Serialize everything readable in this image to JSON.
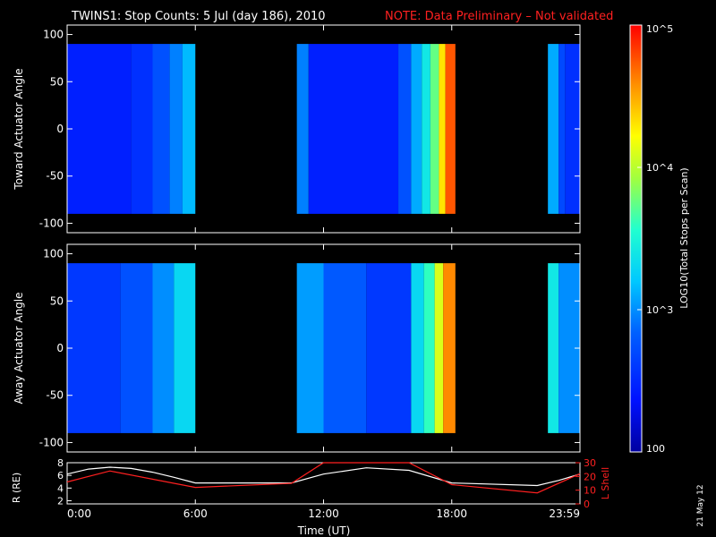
{
  "header": {
    "title": "TWINS1: Stop Counts:  5 Jul (day 186), 2010",
    "note": "NOTE: Data Preliminary – Not validated",
    "note_color": "#ff2020"
  },
  "footer": {
    "date_stamp": "21 May 12"
  },
  "colors": {
    "background": "#000000",
    "axes": "#ffffff",
    "l_shell_line": "#ff2020",
    "r_line": "#ffffff"
  },
  "chart_data": [
    {
      "type": "heatmap",
      "ylabel": "Toward Actuator Angle",
      "ylim": [
        -110,
        110
      ],
      "yticks": [
        -100,
        -50,
        0,
        50,
        100
      ],
      "xlim_hours": [
        0,
        24
      ],
      "data_y_range": [
        -90,
        90
      ],
      "time_blocks": [
        {
          "start": "00:00",
          "end": "06:00"
        },
        {
          "start": "10:45",
          "end": "18:10"
        },
        {
          "start": "22:30",
          "end": "24:00"
        }
      ],
      "levels": [
        {
          "start": 0.0,
          "end": 3.0,
          "log": 2.45
        },
        {
          "start": 3.0,
          "end": 4.0,
          "log": 2.55
        },
        {
          "start": 4.0,
          "end": 4.8,
          "log": 2.75
        },
        {
          "start": 4.8,
          "end": 5.4,
          "log": 2.95
        },
        {
          "start": 5.4,
          "end": 6.0,
          "log": 3.15
        },
        {
          "start": 10.75,
          "end": 11.3,
          "log": 2.95
        },
        {
          "start": 11.3,
          "end": 15.5,
          "log": 2.45
        },
        {
          "start": 15.5,
          "end": 16.1,
          "log": 2.75
        },
        {
          "start": 16.1,
          "end": 16.6,
          "log": 3.1
        },
        {
          "start": 16.6,
          "end": 17.0,
          "log": 3.4
        },
        {
          "start": 17.0,
          "end": 17.4,
          "log": 3.75
        },
        {
          "start": 17.4,
          "end": 17.7,
          "log": 4.3
        },
        {
          "start": 17.7,
          "end": 18.17,
          "log": 4.75
        },
        {
          "start": 22.5,
          "end": 23.0,
          "log": 3.1
        },
        {
          "start": 23.0,
          "end": 23.3,
          "log": 2.7
        },
        {
          "start": 23.3,
          "end": 24.0,
          "log": 2.55
        }
      ]
    },
    {
      "type": "heatmap",
      "ylabel": "Away Actuator Angle",
      "ylim": [
        -110,
        110
      ],
      "yticks": [
        -100,
        -50,
        0,
        50,
        100
      ],
      "xlim_hours": [
        0,
        24
      ],
      "data_y_range": [
        -90,
        90
      ],
      "time_blocks": [
        {
          "start": "00:00",
          "end": "06:00"
        },
        {
          "start": "10:45",
          "end": "18:10"
        },
        {
          "start": "22:30",
          "end": "24:00"
        }
      ],
      "levels": [
        {
          "start": 0.0,
          "end": 2.5,
          "log": 2.6
        },
        {
          "start": 2.5,
          "end": 4.0,
          "log": 2.75
        },
        {
          "start": 4.0,
          "end": 5.0,
          "log": 3.0
        },
        {
          "start": 5.0,
          "end": 6.0,
          "log": 3.3
        },
        {
          "start": 10.75,
          "end": 12.0,
          "log": 3.05
        },
        {
          "start": 12.0,
          "end": 14.0,
          "log": 2.8
        },
        {
          "start": 14.0,
          "end": 16.1,
          "log": 2.6
        },
        {
          "start": 16.1,
          "end": 16.7,
          "log": 3.3
        },
        {
          "start": 16.7,
          "end": 17.2,
          "log": 3.6
        },
        {
          "start": 17.2,
          "end": 17.6,
          "log": 4.1
        },
        {
          "start": 17.6,
          "end": 18.17,
          "log": 4.6
        },
        {
          "start": 22.5,
          "end": 23.0,
          "log": 3.4
        },
        {
          "start": 23.0,
          "end": 24.0,
          "log": 3.0
        }
      ]
    },
    {
      "type": "line",
      "xlabel": "Time (UT)",
      "ylabel_left": "R (RE)",
      "ylabel_right": "L Shell",
      "xticks": [
        "0:00",
        "6:00",
        "12:00",
        "18:00",
        "23:59"
      ],
      "xlim_hours": [
        0,
        24
      ],
      "y_left_lim": [
        1.5,
        8
      ],
      "y_left_ticks": [
        2,
        4,
        6,
        8
      ],
      "y_right_lim": [
        0,
        30
      ],
      "y_right_ticks": [
        0,
        10,
        20,
        30
      ],
      "series": [
        {
          "name": "R (RE)",
          "axis": "left",
          "x": [
            0,
            1,
            2,
            3,
            4,
            5,
            6,
            10.5,
            12,
            14,
            16,
            18,
            22,
            23,
            24
          ],
          "y": [
            6.2,
            7.0,
            7.3,
            7.1,
            6.5,
            5.7,
            4.8,
            4.8,
            6.2,
            7.2,
            6.8,
            4.8,
            4.4,
            5.2,
            6.2
          ]
        },
        {
          "name": "L Shell",
          "axis": "right",
          "x": [
            0,
            2,
            6,
            10.5,
            12,
            16,
            18,
            22,
            24
          ],
          "y": [
            16,
            24,
            12,
            15,
            30,
            30,
            14,
            8,
            22
          ]
        }
      ]
    }
  ],
  "colorbar": {
    "label": "LOG10(Total Stops per Scan)",
    "ticks": [
      "100",
      "10^3",
      "10^4",
      "10^5"
    ],
    "log_range": [
      2,
      5
    ]
  }
}
